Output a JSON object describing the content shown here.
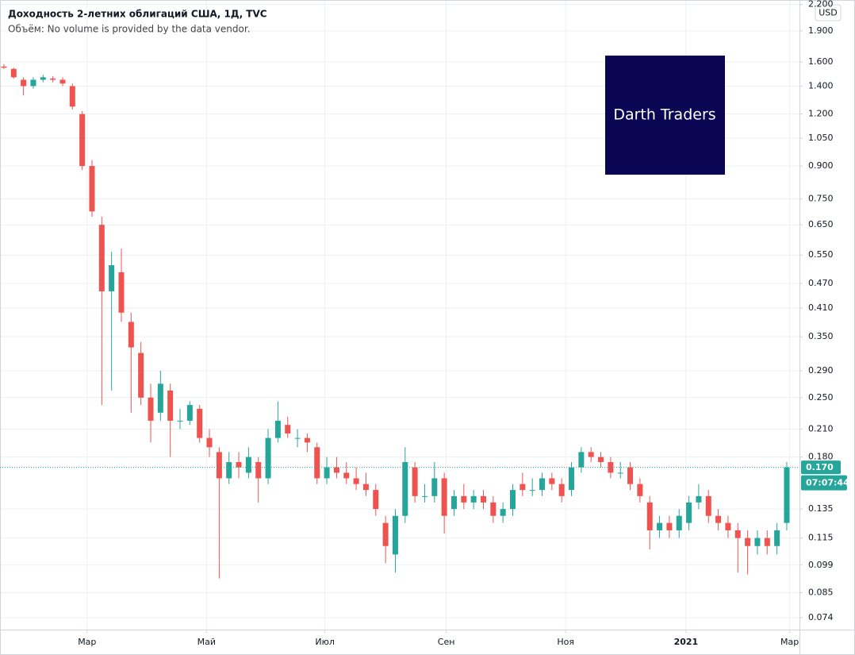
{
  "chart_data": {
    "type": "candlestick",
    "title": "Доходность 2-летних облигаций США, 1Д, TVC",
    "subtitle": "Объём: No volume is provided by the data vendor.",
    "currency": "USD",
    "watermark": "Darth Traders",
    "log_scale": true,
    "grid": true,
    "up_color": "#26a69a",
    "down_color": "#ef5350",
    "last_price": {
      "value": 0.17,
      "label": "0.170"
    },
    "countdown": "07:07:44",
    "xlim": [
      -0.4,
      81.3
    ],
    "xticks": [
      {
        "value": 8.5,
        "label": "Мар"
      },
      {
        "value": 20.7,
        "label": "Май"
      },
      {
        "value": 32.8,
        "label": "Июл"
      },
      {
        "value": 45.2,
        "label": "Сен"
      },
      {
        "value": 57.4,
        "label": "Ноя"
      },
      {
        "value": 69.7,
        "label": "2021"
      },
      {
        "value": 80.3,
        "label": "Мар"
      }
    ],
    "ylim": [
      0.0693,
      2.254
    ],
    "yticks": [
      {
        "value": 2.2,
        "label": "2.200"
      },
      {
        "value": 1.9,
        "label": "1.900"
      },
      {
        "value": 1.6,
        "label": "1.600"
      },
      {
        "value": 1.4,
        "label": "1.400"
      },
      {
        "value": 1.2,
        "label": "1.200"
      },
      {
        "value": 1.05,
        "label": "1.050"
      },
      {
        "value": 0.9,
        "label": "0.900"
      },
      {
        "value": 0.75,
        "label": "0.750"
      },
      {
        "value": 0.65,
        "label": "0.650"
      },
      {
        "value": 0.55,
        "label": "0.550"
      },
      {
        "value": 0.47,
        "label": "0.470"
      },
      {
        "value": 0.41,
        "label": "0.410"
      },
      {
        "value": 0.35,
        "label": "0.350"
      },
      {
        "value": 0.29,
        "label": "0.290"
      },
      {
        "value": 0.25,
        "label": "0.250"
      },
      {
        "value": 0.21,
        "label": "0.210"
      },
      {
        "value": 0.18,
        "label": "0.180"
      },
      {
        "value": 0.135,
        "label": "0.135"
      },
      {
        "value": 0.115,
        "label": "0.115"
      },
      {
        "value": 0.099,
        "label": "0.099"
      },
      {
        "value": 0.085,
        "label": "0.085"
      },
      {
        "value": 0.074,
        "label": "0.074"
      }
    ],
    "open": [
      1.56,
      1.54,
      1.45,
      1.4,
      1.45,
      1.46,
      1.45,
      1.4,
      1.2,
      0.9,
      0.65,
      0.45,
      0.5,
      0.38,
      0.32,
      0.25,
      0.23,
      0.26,
      0.22,
      0.22,
      0.235,
      0.2,
      0.185,
      0.16,
      0.175,
      0.165,
      0.175,
      0.16,
      0.2,
      0.215,
      0.2,
      0.2,
      0.19,
      0.16,
      0.17,
      0.165,
      0.16,
      0.155,
      0.15,
      0.125,
      0.105,
      0.13,
      0.17,
      0.145,
      0.145,
      0.16,
      0.135,
      0.145,
      0.14,
      0.145,
      0.14,
      0.13,
      0.135,
      0.155,
      0.15,
      0.15,
      0.16,
      0.155,
      0.15,
      0.17,
      0.185,
      0.18,
      0.175,
      0.165,
      0.17,
      0.155,
      0.14,
      0.12,
      0.125,
      0.12,
      0.125,
      0.14,
      0.145,
      0.13,
      0.125,
      0.12,
      0.115,
      0.11,
      0.115,
      0.11,
      0.125
    ],
    "high": [
      1.58,
      1.55,
      1.47,
      1.47,
      1.49,
      1.48,
      1.47,
      1.42,
      1.22,
      0.93,
      0.68,
      0.56,
      0.57,
      0.4,
      0.34,
      0.27,
      0.29,
      0.27,
      0.235,
      0.245,
      0.24,
      0.21,
      0.19,
      0.185,
      0.185,
      0.19,
      0.18,
      0.21,
      0.245,
      0.225,
      0.21,
      0.205,
      0.195,
      0.18,
      0.18,
      0.175,
      0.17,
      0.165,
      0.155,
      0.13,
      0.135,
      0.19,
      0.175,
      0.155,
      0.175,
      0.165,
      0.15,
      0.155,
      0.15,
      0.15,
      0.145,
      0.14,
      0.155,
      0.165,
      0.16,
      0.165,
      0.165,
      0.16,
      0.175,
      0.19,
      0.19,
      0.185,
      0.18,
      0.175,
      0.175,
      0.16,
      0.145,
      0.13,
      0.13,
      0.135,
      0.145,
      0.155,
      0.15,
      0.135,
      0.13,
      0.125,
      0.12,
      0.12,
      0.12,
      0.125,
      0.175
    ],
    "low": [
      1.54,
      1.46,
      1.33,
      1.38,
      1.43,
      1.43,
      1.4,
      1.23,
      0.88,
      0.68,
      0.24,
      0.26,
      0.38,
      0.23,
      0.24,
      0.195,
      0.22,
      0.18,
      0.21,
      0.215,
      0.195,
      0.18,
      0.092,
      0.155,
      0.16,
      0.16,
      0.14,
      0.155,
      0.195,
      0.2,
      0.19,
      0.185,
      0.155,
      0.155,
      0.16,
      0.155,
      0.15,
      0.145,
      0.13,
      0.1,
      0.095,
      0.125,
      0.14,
      0.14,
      0.14,
      0.118,
      0.13,
      0.135,
      0.135,
      0.135,
      0.125,
      0.125,
      0.13,
      0.145,
      0.145,
      0.145,
      0.15,
      0.14,
      0.145,
      0.165,
      0.175,
      0.17,
      0.16,
      0.16,
      0.15,
      0.14,
      0.108,
      0.115,
      0.115,
      0.115,
      0.12,
      0.135,
      0.125,
      0.12,
      0.115,
      0.095,
      0.094,
      0.105,
      0.105,
      0.105,
      0.12
    ],
    "close": [
      1.55,
      1.47,
      1.4,
      1.45,
      1.47,
      1.45,
      1.42,
      1.25,
      0.9,
      0.7,
      0.45,
      0.52,
      0.4,
      0.33,
      0.25,
      0.22,
      0.27,
      0.22,
      0.22,
      0.24,
      0.2,
      0.19,
      0.16,
      0.175,
      0.17,
      0.18,
      0.16,
      0.2,
      0.22,
      0.205,
      0.2,
      0.195,
      0.16,
      0.17,
      0.165,
      0.16,
      0.155,
      0.15,
      0.135,
      0.11,
      0.13,
      0.175,
      0.145,
      0.145,
      0.16,
      0.13,
      0.145,
      0.14,
      0.145,
      0.14,
      0.13,
      0.135,
      0.15,
      0.15,
      0.15,
      0.16,
      0.155,
      0.145,
      0.17,
      0.185,
      0.18,
      0.175,
      0.165,
      0.165,
      0.155,
      0.145,
      0.12,
      0.125,
      0.12,
      0.13,
      0.14,
      0.145,
      0.13,
      0.125,
      0.12,
      0.115,
      0.11,
      0.115,
      0.11,
      0.12,
      0.17
    ]
  }
}
